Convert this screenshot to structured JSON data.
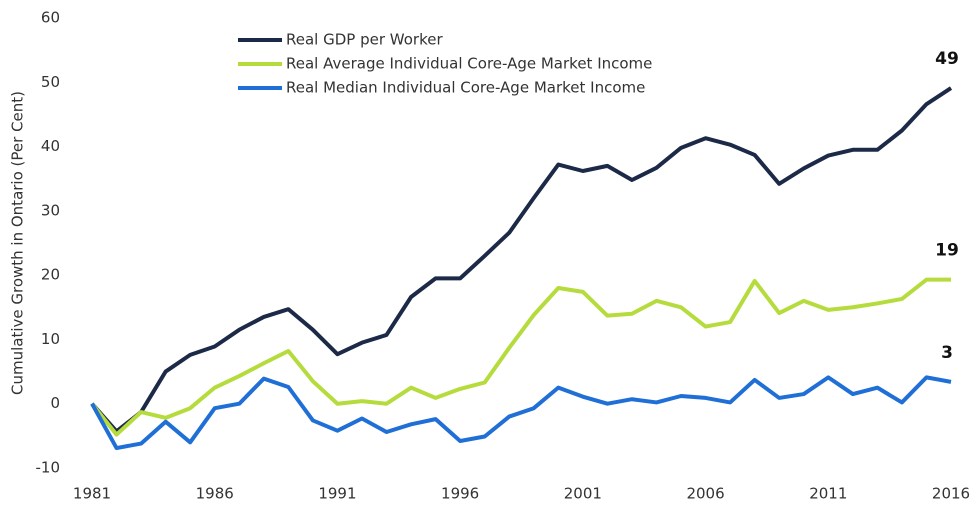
{
  "chart_data": {
    "type": "line",
    "y_label": "Cumulative Growth in Ontario (Per Cent)",
    "x": [
      1981,
      1982,
      1983,
      1984,
      1985,
      1986,
      1987,
      1988,
      1989,
      1990,
      1991,
      1992,
      1993,
      1994,
      1995,
      1996,
      1997,
      1998,
      1999,
      2000,
      2001,
      2002,
      2003,
      2004,
      2005,
      2006,
      2007,
      2008,
      2009,
      2010,
      2011,
      2012,
      2013,
      2014,
      2015,
      2016
    ],
    "xlim": [
      1981,
      2016
    ],
    "xticks": [
      1981,
      1986,
      1991,
      1996,
      2001,
      2006,
      2011,
      2016
    ],
    "ylim": [
      -10,
      60
    ],
    "yticks": [
      -10,
      0,
      10,
      20,
      30,
      40,
      50,
      60
    ],
    "grid": false,
    "legend": "top-left",
    "series": [
      {
        "name": "Real GDP per Worker",
        "color": "#1c2a48",
        "end_label": "49",
        "values": [
          0,
          -4.3,
          -1.3,
          5,
          7.6,
          8.9,
          11.5,
          13.5,
          14.7,
          11.5,
          7.7,
          9.5,
          10.7,
          16.6,
          19.5,
          19.5,
          23,
          26.6,
          32,
          37.2,
          36.2,
          37,
          34.8,
          36.7,
          39.8,
          41.3,
          40.3,
          38.7,
          34.2,
          36.6,
          38.6,
          39.5,
          39.5,
          42.5,
          46.6,
          49.1
        ]
      },
      {
        "name": "Real Average Individual Core-Age Market Income",
        "color": "#b5dc3c",
        "end_label": "19",
        "values": [
          0,
          -4.8,
          -1.3,
          -2.2,
          -0.7,
          2.5,
          4.3,
          6.3,
          8.2,
          3.5,
          0,
          0.4,
          0,
          2.5,
          0.9,
          2.3,
          3.3,
          8.7,
          13.8,
          18,
          17.4,
          13.7,
          14,
          16,
          15,
          12,
          12.7,
          19.1,
          14.1,
          16,
          14.6,
          15,
          15.6,
          16.3,
          19.3,
          19.3
        ]
      },
      {
        "name": "Real Median Individual Core-Age Market Income",
        "color": "#1f6fd6",
        "end_label": "3",
        "values": [
          0,
          -6.9,
          -6.2,
          -2.8,
          -6,
          -0.7,
          0,
          3.9,
          2.6,
          -2.6,
          -4.2,
          -2.3,
          -4.4,
          -3.2,
          -2.4,
          -5.8,
          -5.1,
          -2,
          -0.7,
          2.5,
          1.1,
          0,
          0.7,
          0.2,
          1.2,
          0.9,
          0.2,
          3.7,
          0.9,
          1.5,
          4.1,
          1.5,
          2.5,
          0.2,
          4.1,
          3.4
        ]
      }
    ]
  }
}
